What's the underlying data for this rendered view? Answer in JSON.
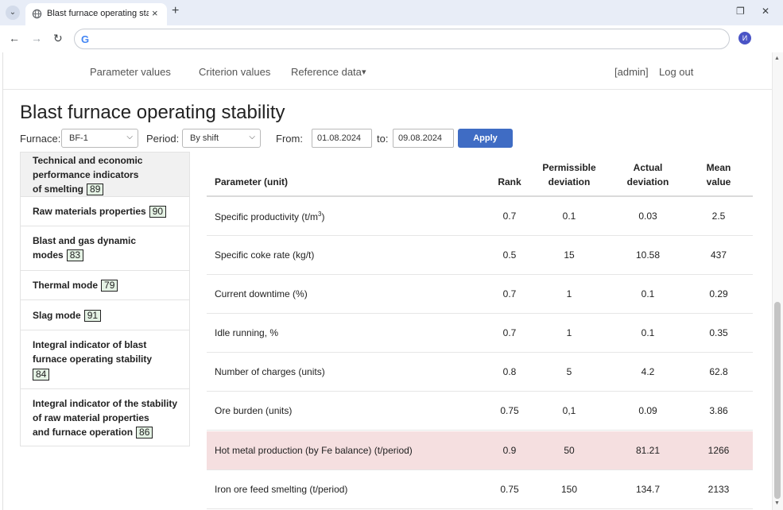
{
  "browser": {
    "tab_title": "Blast furnace operating stability",
    "tab_close": "×",
    "new_tab": "+",
    "tab_menu": "⌄",
    "back": "←",
    "forward": "→",
    "reload": "↻",
    "google_logo": "G",
    "profile_initial": "И",
    "window_minimize": "—",
    "window_restore": "❐",
    "window_close": "✕"
  },
  "nav": {
    "items": [
      "Parameter values",
      "Criterion values",
      "Reference data"
    ],
    "dropdown_caret": "▾",
    "user": "[admin]",
    "logout": "Log out"
  },
  "page_title": "Blast furnace operating stability",
  "filters": {
    "furnace_label": "Furnace:",
    "furnace_value": "BF-1",
    "period_label": "Period:",
    "period_value": "By shift",
    "from_label": "From:",
    "from_value": "01.08.2024",
    "to_label": "to:",
    "to_value": "09.08.2024",
    "apply_label": "Apply"
  },
  "sidebar": {
    "items": [
      {
        "lines": [
          "Technical and economic",
          "performance indicators",
          "of smelting"
        ],
        "badge": "89",
        "active": true
      },
      {
        "lines": [
          "Raw materials properties"
        ],
        "badge": "90"
      },
      {
        "lines": [
          "Blast and gas dynamic",
          "modes"
        ],
        "badge": "83"
      },
      {
        "lines": [
          "Thermal mode"
        ],
        "badge": "79"
      },
      {
        "lines": [
          "Slag mode"
        ],
        "badge": "91"
      },
      {
        "lines": [
          "Integral indicator of blast",
          "furnace operating stability",
          ""
        ],
        "badge": "84"
      },
      {
        "lines": [
          "Integral indicator of the stability",
          "of raw material properties",
          "and furnace operation"
        ],
        "badge": "86"
      }
    ]
  },
  "table": {
    "headers": {
      "parameter": "Parameter (unit)",
      "rank": "Rank",
      "permissible_1": "Permissible",
      "permissible_2": "deviation",
      "actual_1": "Actual",
      "actual_2": "deviation",
      "mean_1": "Mean",
      "mean_2": "value"
    },
    "rows": [
      {
        "parameter": "Specific productivity (t/m",
        "sup": "3",
        "parameter_end": ")",
        "rank": "0.7",
        "permissible": "0.1",
        "actual": "0.03",
        "mean": "2.5"
      },
      {
        "parameter": "Specific coke rate (kg/t)",
        "rank": "0.5",
        "permissible": "15",
        "actual": "10.58",
        "mean": "437"
      },
      {
        "parameter": "Current downtime (%)",
        "rank": "0.7",
        "permissible": "1",
        "actual": "0.1",
        "mean": "0.29"
      },
      {
        "parameter": "Idle running, %",
        "rank": "0.7",
        "permissible": "1",
        "actual": "0.1",
        "mean": "0.35"
      },
      {
        "parameter": "Number of charges (units)",
        "rank": "0.8",
        "permissible": "5",
        "actual": "4.2",
        "mean": "62.8"
      },
      {
        "parameter": "Ore burden (units)",
        "rank": "0.75",
        "permissible": "0,1",
        "actual": "0.09",
        "mean": "3.86"
      },
      {
        "parameter": "Hot metal production (by Fe balance) (t/period)",
        "rank": "0.9",
        "permissible": "50",
        "actual": "81.21",
        "mean": "1266",
        "highlight": true
      },
      {
        "parameter": "Iron ore feed smelting (t/period)",
        "rank": "0.75",
        "permissible": "150",
        "actual": "134.7",
        "mean": "2133"
      }
    ],
    "highlight_color": "#f5dfe0"
  },
  "colors": {
    "apply_button": "#3f6cc4",
    "badge_bg": "#e4f2e4",
    "active_sidebar": "#f1f1f1"
  }
}
